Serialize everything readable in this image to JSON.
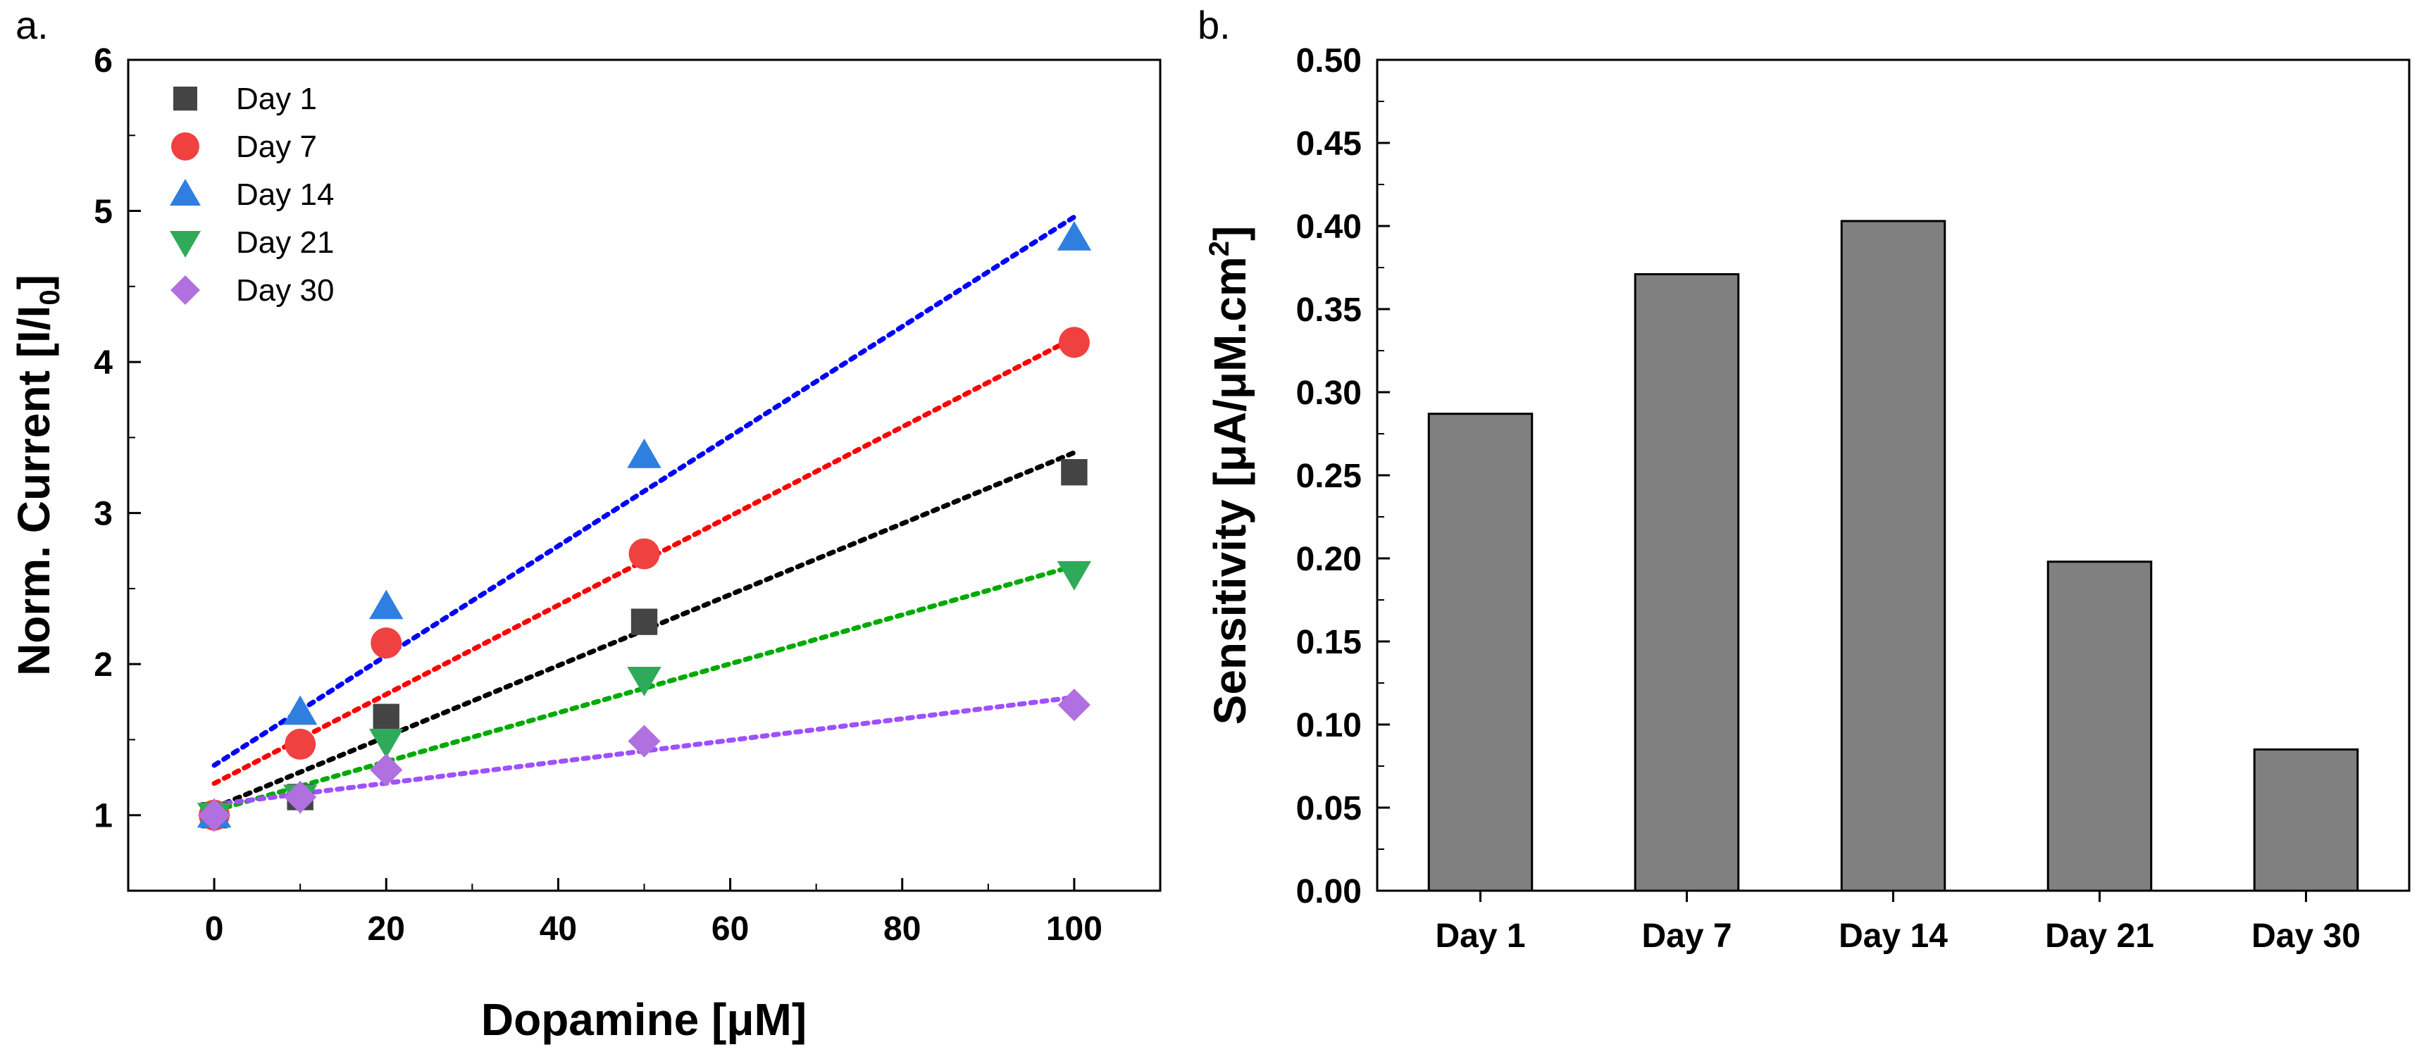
{
  "chart_data": [
    {
      "type": "scatter",
      "panel_label": "a.",
      "xlabel": "Dopamine [μM]",
      "ylabel": "Norm. Current [I/I",
      "ylabel_sub": "0",
      "ylabel_end": "]",
      "xlim": [
        -10,
        110
      ],
      "ylim": [
        0.5,
        6
      ],
      "xticks": [
        0,
        20,
        40,
        60,
        80,
        100
      ],
      "yticks": [
        1,
        2,
        3,
        4,
        5,
        6
      ],
      "legend_position": "top-left",
      "x": [
        0,
        10,
        20,
        50,
        100
      ],
      "series": [
        {
          "name": "Day 1",
          "marker": "square",
          "color": "#444444",
          "fit_color": "#000000",
          "values": [
            1.0,
            1.12,
            1.65,
            2.28,
            3.27
          ],
          "fit": {
            "slope": 0.0235,
            "intercept": 1.05
          }
        },
        {
          "name": "Day 7",
          "marker": "circle",
          "color": "#f04141",
          "fit_color": "#ff0000",
          "values": [
            1.0,
            1.47,
            2.14,
            2.73,
            4.13
          ],
          "fit": {
            "slope": 0.0295,
            "intercept": 1.21
          }
        },
        {
          "name": "Day 14",
          "marker": "triangle-up",
          "color": "#2f7fe0",
          "fit_color": "#0000ff",
          "values": [
            1.0,
            1.68,
            2.38,
            3.38,
            4.82
          ],
          "fit": {
            "slope": 0.0363,
            "intercept": 1.33
          }
        },
        {
          "name": "Day 21",
          "marker": "triangle-down",
          "color": "#2eaa5a",
          "fit_color": "#00aa00",
          "values": [
            1.0,
            1.12,
            1.49,
            1.9,
            2.6
          ],
          "fit": {
            "slope": 0.0162,
            "intercept": 1.03
          }
        },
        {
          "name": "Day 30",
          "marker": "diamond",
          "color": "#b070e0",
          "fit_color": "#9f50ff",
          "values": [
            1.0,
            1.12,
            1.3,
            1.49,
            1.73
          ],
          "fit": {
            "slope": 0.0071,
            "intercept": 1.07
          }
        }
      ]
    },
    {
      "type": "bar",
      "panel_label": "b.",
      "categories": [
        "Day 1",
        "Day 7",
        "Day 14",
        "Day 21",
        "Day 30"
      ],
      "values": [
        0.287,
        0.371,
        0.403,
        0.198,
        0.085
      ],
      "bar_color": "#808080",
      "ylabel": "Sensitivity [μA/μM.cm",
      "ylabel_sup": "2",
      "ylabel_end": "]",
      "xlabel": "",
      "ylim": [
        0,
        0.5
      ],
      "yticks": [
        "0.00",
        "0.05",
        "0.10",
        "0.15",
        "0.20",
        "0.25",
        "0.30",
        "0.35",
        "0.40",
        "0.45",
        "0.50"
      ]
    }
  ]
}
